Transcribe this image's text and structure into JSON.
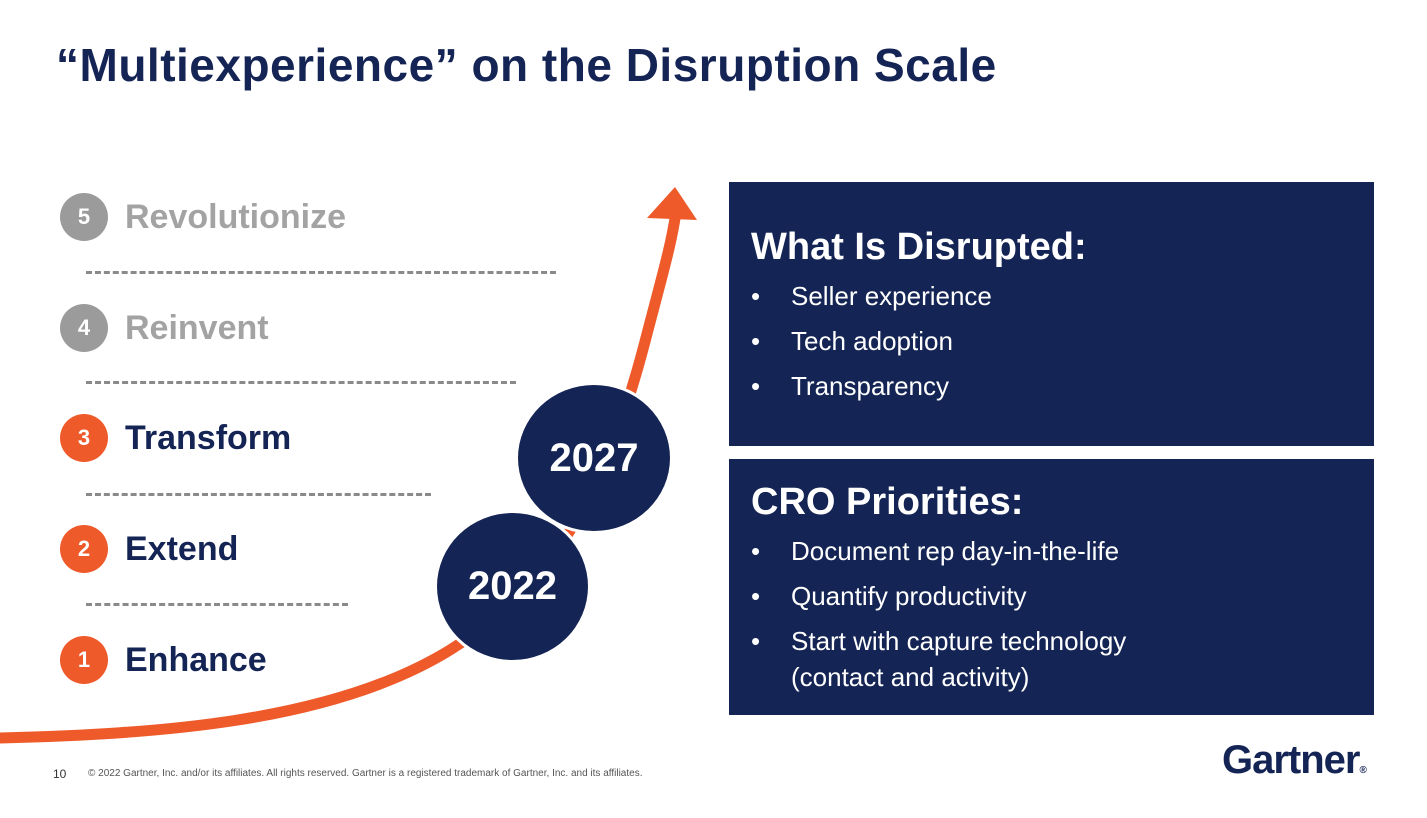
{
  "title": "“Multiexperience” on the Disruption Scale",
  "colors": {
    "navy": "#142454",
    "orange": "#ef5a2b",
    "gray": "#9b9b9b"
  },
  "levels": [
    {
      "number": "5",
      "label": "Revolutionize",
      "state": "muted"
    },
    {
      "number": "4",
      "label": "Reinvent",
      "state": "muted"
    },
    {
      "number": "3",
      "label": "Transform",
      "state": "active"
    },
    {
      "number": "2",
      "label": "Extend",
      "state": "active"
    },
    {
      "number": "1",
      "label": "Enhance",
      "state": "active"
    }
  ],
  "milestones": [
    {
      "year": "2022",
      "level": 1.5
    },
    {
      "year": "2027",
      "level": 2.7
    }
  ],
  "disrupted": {
    "title": "What Is Disrupted:",
    "items": [
      "Seller experience",
      "Tech adoption",
      "Transparency"
    ]
  },
  "priorities": {
    "title": "CRO Priorities:",
    "items": [
      "Document rep day-in-the-life",
      "Quantify productivity",
      "Start with capture technology (contact and activity)"
    ]
  },
  "footer": {
    "page_number": "10",
    "copyright": "© 2022 Gartner, Inc. and/or its affiliates. All rights reserved. Gartner is a registered trademark of Gartner, Inc. and its affiliates."
  },
  "logo": {
    "text": "Gartner",
    "mark": "®"
  }
}
